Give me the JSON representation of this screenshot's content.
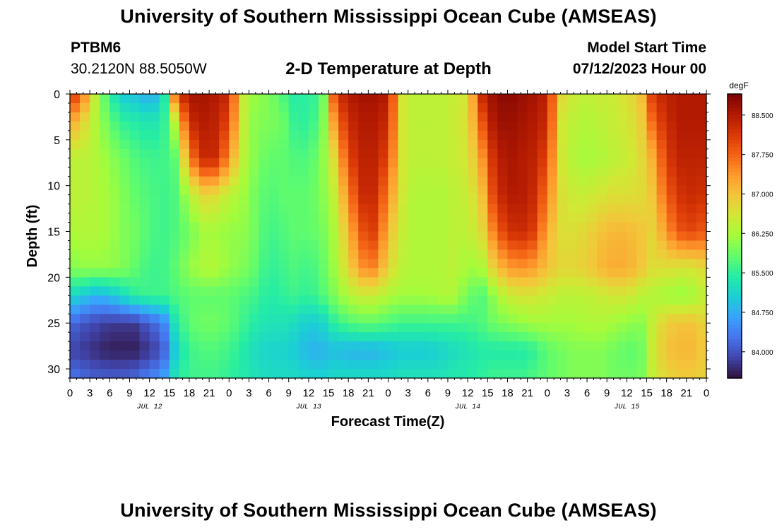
{
  "header": {
    "title": "University of Southern Mississippi Ocean Cube (AMSEAS)",
    "station": "PTBM6",
    "coords": "30.2120N  88.5050W",
    "plot_subtitle": "2-D Temperature at Depth",
    "model_start_label": "Model Start Time",
    "model_start_value": "07/12/2023 Hour 00",
    "footer_title": "University of Southern Mississippi Ocean Cube (AMSEAS)"
  },
  "chart_data": {
    "type": "heatmap",
    "title": "2-D Temperature at Depth",
    "xlabel": "Forecast Time(Z)",
    "ylabel": "Depth (ft)",
    "x_unit": "hours since 07/12/2023 00Z",
    "xlim": [
      0,
      96
    ],
    "ylim": [
      0,
      31
    ],
    "y_inverted": true,
    "x_ticks": [
      0,
      3,
      6,
      9,
      12,
      15,
      18,
      21,
      24,
      27,
      30,
      33,
      36,
      39,
      42,
      45,
      48,
      51,
      54,
      57,
      60,
      63,
      66,
      69,
      72,
      75,
      78,
      81,
      84,
      87,
      90,
      93,
      96
    ],
    "x_tick_labels": [
      "0",
      "3",
      "6",
      "9",
      "12",
      "15",
      "18",
      "21",
      "0",
      "3",
      "6",
      "9",
      "12",
      "15",
      "18",
      "21",
      "0",
      "3",
      "6",
      "9",
      "12",
      "15",
      "18",
      "21",
      "0",
      "3",
      "6",
      "9",
      "12",
      "15",
      "18",
      "21",
      "0"
    ],
    "date_labels": [
      {
        "label": "JUL 12",
        "hour": 12
      },
      {
        "label": "JUL 13",
        "hour": 36
      },
      {
        "label": "JUL 14",
        "hour": 60
      },
      {
        "label": "JUL 15",
        "hour": 84
      }
    ],
    "y_ticks": [
      0,
      5,
      10,
      15,
      20,
      25,
      30
    ],
    "y_tick_labels": [
      "0",
      "5",
      "10",
      "15",
      "20",
      "25",
      "30"
    ],
    "colorbar": {
      "unit": "degF",
      "range": [
        83.5,
        88.9
      ],
      "ticks": [
        88.5,
        87.75,
        87.0,
        86.25,
        85.5,
        84.75,
        84.0
      ],
      "tick_labels": [
        "88.500",
        "87.750",
        "87.000",
        "86.250",
        "85.500",
        "84.750",
        "84.000"
      ]
    },
    "field": {
      "note": "temperature (degF) estimated from the colour field; rows = depth (ft), columns = forecast hour",
      "depths": [
        0,
        3,
        7,
        11,
        15,
        19,
        22,
        25,
        28,
        31
      ],
      "hours": [
        0,
        2,
        4,
        6,
        8,
        10,
        12,
        14,
        16,
        18,
        20,
        22,
        24,
        26,
        28,
        30,
        32,
        34,
        36,
        38,
        40,
        42,
        44,
        46,
        48,
        50,
        52,
        54,
        56,
        58,
        60,
        62,
        64,
        66,
        68,
        70,
        72,
        74,
        76,
        78,
        80,
        82,
        84,
        86,
        88,
        90,
        92,
        94,
        96
      ],
      "values": [
        [
          88.3,
          87.6,
          86.3,
          85.5,
          85.0,
          84.9,
          84.7,
          85.0,
          88.0,
          88.6,
          88.6,
          88.5,
          88.3,
          86.5,
          86.1,
          86.0,
          85.7,
          85.4,
          85.5,
          85.6,
          88.1,
          88.5,
          88.6,
          88.6,
          88.5,
          86.6,
          86.4,
          86.4,
          86.4,
          86.5,
          86.6,
          88.3,
          88.7,
          88.8,
          88.7,
          88.6,
          88.4,
          86.8,
          86.5,
          86.4,
          86.5,
          86.5,
          86.7,
          86.9,
          88.2,
          88.4,
          88.5,
          88.5,
          88.5
        ],
        [
          87.3,
          86.8,
          86.3,
          85.8,
          85.5,
          85.4,
          85.3,
          85.4,
          86.5,
          88.3,
          88.5,
          88.4,
          88.0,
          86.5,
          86.0,
          86.0,
          85.9,
          85.5,
          85.5,
          85.8,
          87.5,
          88.3,
          88.5,
          88.5,
          88.3,
          86.6,
          86.4,
          86.4,
          86.4,
          86.5,
          86.7,
          87.8,
          88.6,
          88.7,
          88.6,
          88.5,
          88.3,
          86.6,
          86.4,
          86.3,
          86.4,
          86.5,
          86.6,
          86.8,
          87.8,
          88.3,
          88.5,
          88.5,
          88.5
        ],
        [
          86.4,
          86.4,
          86.3,
          86.1,
          85.9,
          85.7,
          85.6,
          85.6,
          85.8,
          87.5,
          88.3,
          88.3,
          87.4,
          86.4,
          86.0,
          85.8,
          85.8,
          85.7,
          85.7,
          86.0,
          86.8,
          88.0,
          88.4,
          88.4,
          88.0,
          86.6,
          86.4,
          86.4,
          86.4,
          86.5,
          86.6,
          87.3,
          88.3,
          88.6,
          88.5,
          88.4,
          88.0,
          86.6,
          86.3,
          86.2,
          86.3,
          86.4,
          86.5,
          86.7,
          87.2,
          88.1,
          88.4,
          88.4,
          88.4
        ],
        [
          86.4,
          86.4,
          86.3,
          86.2,
          86.0,
          85.8,
          85.7,
          85.6,
          85.7,
          86.3,
          86.8,
          86.7,
          86.4,
          86.2,
          85.9,
          85.7,
          85.8,
          85.8,
          85.8,
          86.0,
          86.5,
          87.5,
          88.3,
          88.3,
          87.5,
          86.6,
          86.3,
          86.3,
          86.3,
          86.4,
          86.5,
          86.9,
          88.1,
          88.5,
          88.5,
          88.3,
          87.6,
          86.7,
          86.5,
          86.5,
          86.6,
          86.7,
          86.7,
          86.7,
          87.0,
          87.8,
          88.2,
          88.3,
          88.2
        ],
        [
          86.3,
          86.3,
          86.3,
          86.2,
          86.0,
          85.9,
          85.7,
          85.6,
          85.7,
          85.9,
          86.2,
          86.2,
          86.1,
          86.1,
          85.9,
          85.6,
          85.7,
          85.8,
          85.8,
          85.9,
          86.3,
          87.1,
          87.9,
          88.1,
          87.1,
          86.5,
          86.3,
          86.3,
          86.3,
          86.4,
          86.4,
          86.7,
          87.6,
          88.2,
          88.3,
          88.1,
          87.2,
          86.7,
          86.7,
          86.8,
          87.0,
          87.1,
          87.1,
          87.0,
          86.8,
          87.4,
          87.9,
          88.0,
          87.8
        ],
        [
          86.0,
          86.1,
          86.1,
          86.1,
          86.0,
          85.8,
          85.6,
          85.6,
          85.8,
          86.1,
          86.3,
          86.3,
          86.1,
          86.0,
          85.8,
          85.5,
          85.6,
          85.7,
          85.6,
          85.8,
          86.2,
          86.8,
          87.4,
          87.5,
          86.8,
          86.4,
          86.3,
          86.3,
          86.3,
          86.4,
          86.2,
          86.2,
          86.9,
          87.3,
          87.4,
          87.3,
          87.0,
          86.8,
          86.8,
          86.9,
          87.1,
          87.2,
          87.2,
          87.0,
          86.7,
          86.7,
          86.6,
          86.6,
          86.8
        ],
        [
          85.2,
          85.0,
          84.8,
          84.9,
          85.2,
          85.5,
          85.6,
          85.6,
          85.7,
          85.8,
          85.8,
          85.8,
          85.8,
          85.7,
          85.6,
          85.4,
          85.5,
          85.6,
          85.5,
          85.7,
          86.0,
          86.3,
          86.5,
          86.5,
          86.3,
          86.2,
          86.2,
          86.2,
          86.3,
          86.3,
          85.9,
          85.7,
          86.1,
          86.5,
          86.6,
          86.6,
          86.5,
          86.4,
          86.4,
          86.4,
          86.5,
          86.6,
          86.6,
          86.4,
          86.3,
          86.2,
          86.1,
          86.2,
          86.5
        ],
        [
          84.2,
          84.0,
          83.9,
          83.8,
          83.8,
          83.8,
          84.1,
          84.3,
          85.4,
          85.8,
          85.9,
          85.9,
          85.8,
          85.6,
          85.4,
          85.3,
          85.3,
          85.2,
          85.0,
          85.1,
          85.5,
          85.7,
          85.8,
          85.8,
          85.7,
          85.6,
          85.6,
          85.6,
          85.6,
          85.6,
          85.6,
          85.7,
          85.9,
          86.0,
          86.1,
          86.2,
          86.2,
          86.2,
          86.2,
          86.3,
          86.3,
          86.2,
          86.1,
          86.0,
          86.5,
          86.9,
          87.0,
          87.0,
          86.8
        ],
        [
          83.9,
          83.8,
          83.7,
          83.6,
          83.6,
          83.6,
          83.8,
          84.0,
          85.1,
          85.6,
          85.7,
          85.7,
          85.6,
          85.4,
          85.2,
          85.1,
          85.1,
          85.0,
          84.8,
          84.8,
          84.9,
          84.8,
          84.8,
          84.8,
          84.9,
          85.0,
          85.0,
          85.0,
          85.1,
          85.2,
          85.3,
          85.4,
          85.4,
          85.4,
          85.4,
          85.5,
          85.8,
          85.9,
          86.0,
          86.0,
          86.0,
          85.9,
          85.8,
          85.8,
          86.6,
          87.0,
          87.1,
          87.1,
          86.9
        ],
        [
          84.3,
          84.2,
          84.1,
          84.1,
          84.1,
          84.2,
          84.4,
          84.6,
          85.4,
          85.6,
          85.6,
          85.6,
          85.5,
          85.4,
          85.3,
          85.2,
          85.2,
          85.2,
          85.1,
          85.1,
          85.2,
          85.2,
          85.2,
          85.2,
          85.2,
          85.3,
          85.3,
          85.3,
          85.3,
          85.4,
          85.4,
          85.5,
          85.6,
          85.6,
          85.6,
          85.7,
          85.8,
          85.9,
          86.0,
          86.0,
          86.0,
          85.9,
          85.9,
          85.9,
          86.5,
          86.8,
          86.9,
          86.9,
          86.8
        ]
      ]
    }
  },
  "colors": {
    "palette": [
      "#30123b",
      "#4145ab",
      "#4675ed",
      "#39a2fc",
      "#1bcfd4",
      "#24eca6",
      "#61fc6c",
      "#a4fc3b",
      "#d1e834",
      "#f3c63a",
      "#fe9b2d",
      "#f36315",
      "#d93806",
      "#b11901",
      "#7a0403"
    ]
  }
}
